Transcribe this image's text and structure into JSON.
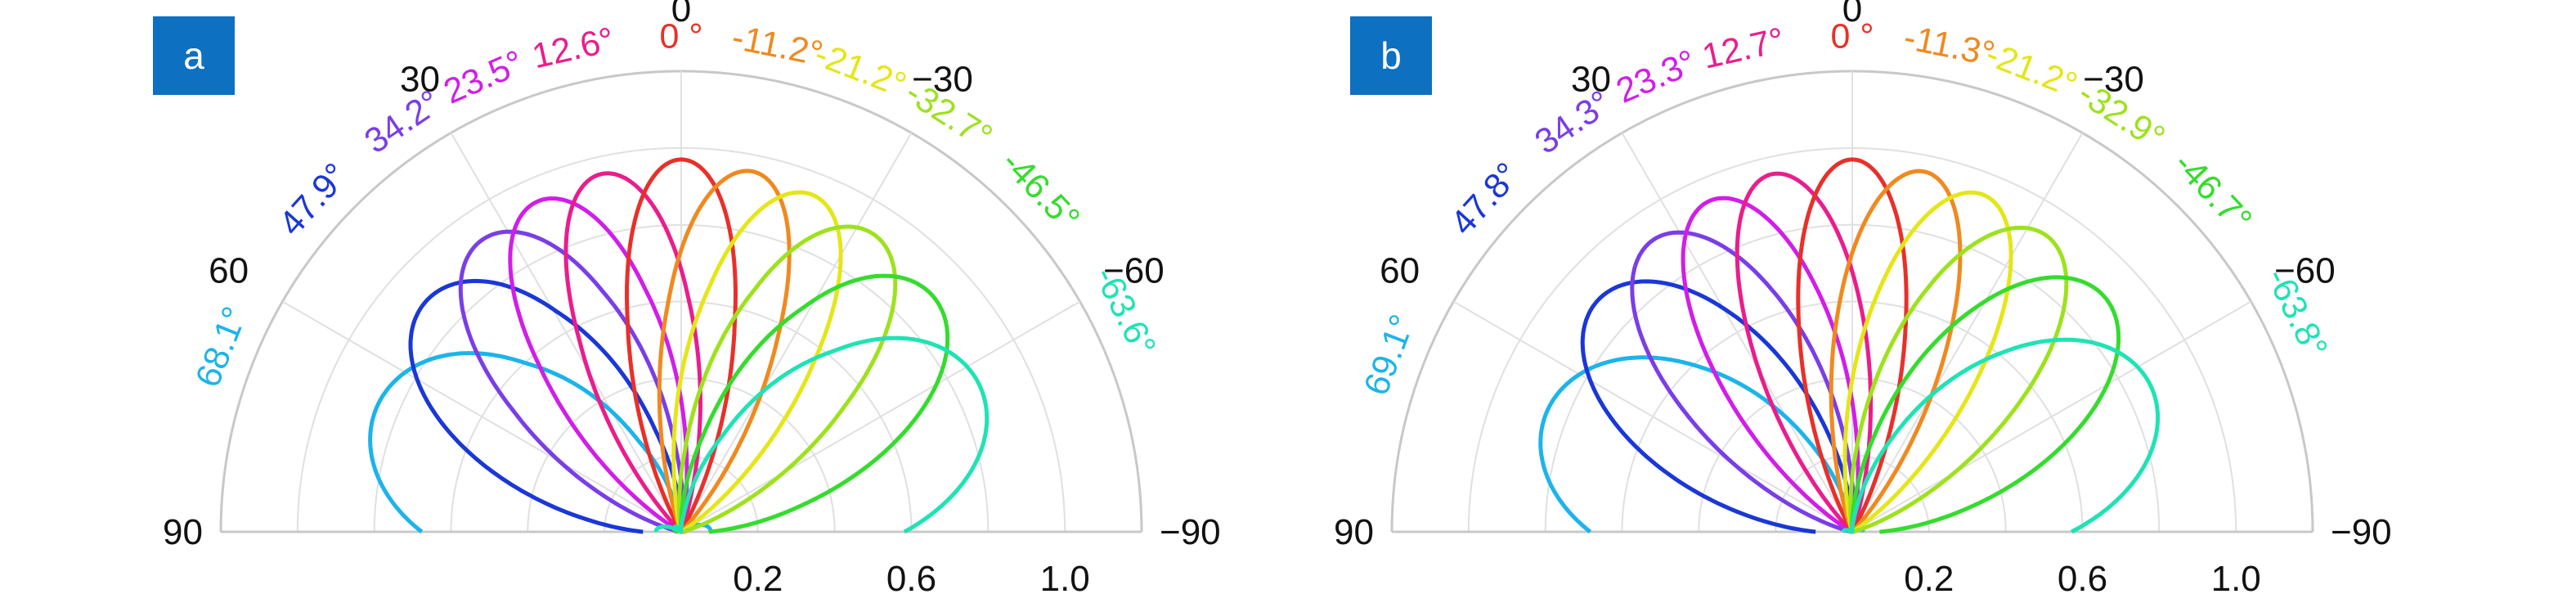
{
  "chart_data": [
    {
      "type": "polar-line",
      "panel_label": "a",
      "angle_ticks": [
        "0",
        "30",
        "−30",
        "60",
        "−60",
        "90",
        "−90"
      ],
      "angle_tick_values": [
        0,
        30,
        -30,
        60,
        -60,
        90,
        -90
      ],
      "radial_ticks": [
        "0.2",
        "0.6",
        "1.0"
      ],
      "radial_tick_values": [
        0.2,
        0.6,
        1.0
      ],
      "rlim": [
        0,
        1.2
      ],
      "theta_range": [
        -90,
        90
      ],
      "grid": true,
      "series": [
        {
          "name": "68.1°",
          "steer_deg": 68.1,
          "color": "#1cb4ea"
        },
        {
          "name": "47.9°",
          "steer_deg": 47.9,
          "color": "#1a37d8"
        },
        {
          "name": "34.2°",
          "steer_deg": 34.2,
          "color": "#7a3ee8"
        },
        {
          "name": "23.5°",
          "steer_deg": 23.5,
          "color": "#d11ee8"
        },
        {
          "name": "12.6°",
          "steer_deg": 12.6,
          "color": "#ea1d8c"
        },
        {
          "name": "0 °",
          "steer_deg": 0,
          "color": "#e8302a"
        },
        {
          "name": "-11.2°",
          "steer_deg": -11.2,
          "color": "#f0891f"
        },
        {
          "name": "-21.2°",
          "steer_deg": -21.2,
          "color": "#e4e619"
        },
        {
          "name": "-32.7°",
          "steer_deg": -32.7,
          "color": "#9de21d"
        },
        {
          "name": "-46.5°",
          "steer_deg": -46.5,
          "color": "#35dc2e"
        },
        {
          "name": "-63.6°",
          "steer_deg": -63.6,
          "color": "#1fe3b4"
        }
      ]
    },
    {
      "type": "polar-line",
      "panel_label": "b",
      "angle_ticks": [
        "0",
        "30",
        "−30",
        "60",
        "−60",
        "90",
        "−90"
      ],
      "angle_tick_values": [
        0,
        30,
        -30,
        60,
        -60,
        90,
        -90
      ],
      "radial_ticks": [
        "0.2",
        "0.6",
        "1.0"
      ],
      "radial_tick_values": [
        0.2,
        0.6,
        1.0
      ],
      "rlim": [
        0,
        1.2
      ],
      "theta_range": [
        -90,
        90
      ],
      "grid": true,
      "series": [
        {
          "name": "69.1°",
          "steer_deg": 69.1,
          "color": "#1cb4ea"
        },
        {
          "name": "47.8°",
          "steer_deg": 47.8,
          "color": "#1a37d8"
        },
        {
          "name": "34.3°",
          "steer_deg": 34.3,
          "color": "#7a3ee8"
        },
        {
          "name": "23.3°",
          "steer_deg": 23.3,
          "color": "#d11ee8"
        },
        {
          "name": "12.7°",
          "steer_deg": 12.7,
          "color": "#ea1d8c"
        },
        {
          "name": "0 °",
          "steer_deg": 0,
          "color": "#e8302a"
        },
        {
          "name": "-11.3°",
          "steer_deg": -11.3,
          "color": "#f0891f"
        },
        {
          "name": "-21.2°",
          "steer_deg": -21.2,
          "color": "#e4e619"
        },
        {
          "name": "-32.9°",
          "steer_deg": -32.9,
          "color": "#9de21d"
        },
        {
          "name": "-46.7°",
          "steer_deg": -46.7,
          "color": "#35dc2e"
        },
        {
          "name": "-63.8°",
          "steer_deg": -63.8,
          "color": "#1fe3b4"
        }
      ]
    }
  ]
}
